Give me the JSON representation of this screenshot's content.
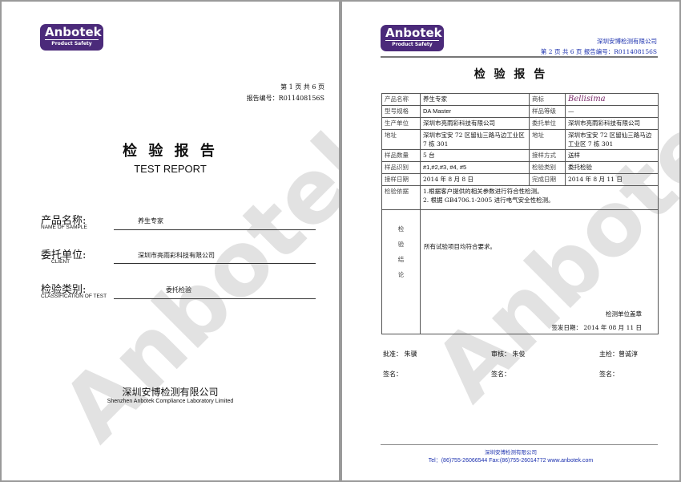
{
  "logo": {
    "name": "Anbotek",
    "tagline": "Product Safety"
  },
  "watermark": "Anbotek",
  "cover": {
    "page_info": "第 1 页 共 6 页",
    "report_no": "报告编号：R011408156S",
    "title_cn": "检 验 报 告",
    "title_en": "TEST REPORT",
    "fields": [
      {
        "label_cn": "产品名称:",
        "label_en": "NAME OF SAMPLE",
        "value": "养生专家"
      },
      {
        "label_cn": "委托单位:",
        "label_en": "CLIENT",
        "value": "深圳市亮雨彩科技有限公司"
      },
      {
        "label_cn": "检验类别:",
        "label_en": "CLASSIFICATION OF TEST",
        "value": "委托检验"
      }
    ],
    "company_cn": "深圳安博检测有限公司",
    "company_en": "Shenzhen Anbotek Compliance Laboratory Limited"
  },
  "report": {
    "company": "深圳安博检测有限公司",
    "page_info": "第 2 页 共 6 页 报告编号：R011408156S",
    "title": "检  验  报  告",
    "rows": [
      [
        "产品名称",
        "养生专家",
        "商标",
        "Bellisima"
      ],
      [
        "型号规格",
        "DA Master",
        "样品等级",
        "—"
      ],
      [
        "生产单位",
        "深圳市亮雨彩科技有限公司",
        "委托单位",
        "深圳市亮雨彩科技有限公司"
      ],
      [
        "地址",
        "深圳市宝安 72 区留仙三路马边工业区 7 栋 301",
        "地址",
        "深圳市宝安 72 区留仙三路马边工业区 7 栋 301"
      ],
      [
        "样品数量",
        "5 台",
        "接样方式",
        "送样"
      ],
      [
        "样品识别",
        "#1,#2,#3, #4, #5",
        "检验类别",
        "委托检验"
      ],
      [
        "接样日期",
        "2014 年 8 月 8 日",
        "完成日期",
        "2014 年 8 月 11 日"
      ]
    ],
    "basis_label": "检验依据",
    "basis": [
      "1.根据客户提供的相关参数进行符合性检测。",
      "2. 根据 GB4706.1-2005 进行电气安全性检测。"
    ],
    "conclusion_label": [
      "检",
      "验",
      "结",
      "论"
    ],
    "conclusion": "所有试验项目均符合要求。",
    "stamp": "检测单位盖章",
    "issue_date": "签发日期：  2014 年 08 月 11 日",
    "signers": [
      {
        "role": "批准：  朱骥",
        "sign": "签名："
      },
      {
        "role": "审核：  朱俊",
        "sign": "签名："
      },
      {
        "role": "主检：曾诚淳",
        "sign": "签名："
      }
    ],
    "footer_company": "深圳安博检测有限公司",
    "footer_contact": "Tel：(86)755-26066544   Fax:(86)755-26014772  www.anbotek.com"
  },
  "colors": {
    "brand": "#4b2a7a",
    "header_blue": "#1a2fae"
  }
}
